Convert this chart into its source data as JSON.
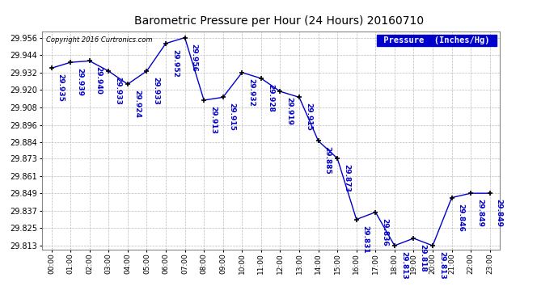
{
  "title": "Barometric Pressure per Hour (24 Hours) 20160710",
  "legend_label": "Pressure  (Inches/Hg)",
  "copyright": "Copyright 2016 Curtronics.com",
  "hours": [
    0,
    1,
    2,
    3,
    4,
    5,
    6,
    7,
    8,
    9,
    10,
    11,
    12,
    13,
    14,
    15,
    16,
    17,
    18,
    19,
    20,
    21,
    22,
    23
  ],
  "pressures": [
    29.935,
    29.939,
    29.94,
    29.933,
    29.924,
    29.933,
    29.952,
    29.956,
    29.913,
    29.915,
    29.932,
    29.928,
    29.919,
    29.915,
    29.885,
    29.873,
    29.831,
    29.836,
    29.813,
    29.818,
    29.813,
    29.846,
    29.849,
    29.849
  ],
  "ylim_min": 29.81,
  "ylim_max": 29.96,
  "yticks": [
    29.813,
    29.825,
    29.837,
    29.849,
    29.861,
    29.873,
    29.884,
    29.896,
    29.908,
    29.92,
    29.932,
    29.944,
    29.956
  ],
  "line_color": "#0000CC",
  "marker_color": "#000000",
  "bg_color": "#FFFFFF",
  "grid_color": "#BBBBBB",
  "title_color": "#000000",
  "label_color": "#0000CC",
  "legend_bg": "#0000CC",
  "legend_fg": "#FFFFFF"
}
